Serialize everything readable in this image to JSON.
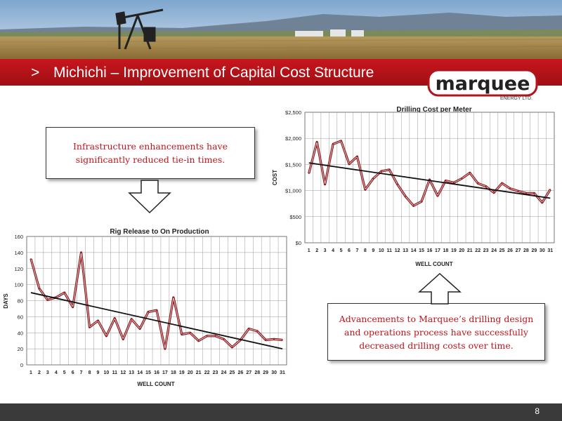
{
  "slide": {
    "title": "Michichi – Improvement of Capital Cost Structure",
    "title_marker": ">",
    "page_number": "8"
  },
  "logo": {
    "name": "marquee",
    "subtitle": "ENERGY LTD."
  },
  "callouts": {
    "infrastructure": "Infrastructure enhancements have significantly reduced tie-in times.",
    "drilling": "Advancements to Marquee’s drilling design and operations process have successfully decreased drilling costs over time."
  },
  "colors": {
    "accent": "#c8161d",
    "series": "#b2141b",
    "trend": "#111111",
    "footer": "#3a3a3a"
  },
  "chart_data": [
    {
      "type": "line",
      "title": "Drilling Cost per Meter",
      "xlabel": "WELL COUNT",
      "ylabel": "COST",
      "x": [
        1,
        2,
        3,
        4,
        5,
        6,
        7,
        8,
        9,
        10,
        11,
        12,
        13,
        14,
        15,
        16,
        17,
        18,
        19,
        20,
        21,
        22,
        23,
        24,
        25,
        26,
        27,
        28,
        29,
        30,
        31
      ],
      "ylim": [
        0,
        2500
      ],
      "yticks": [
        "$0",
        "$500",
        "$1,000",
        "$1,500",
        "$2,000",
        "$2,500"
      ],
      "grid": true,
      "series": [
        {
          "values": [
            1330,
            1930,
            1120,
            1890,
            1950,
            1510,
            1650,
            1020,
            1230,
            1370,
            1400,
            1120,
            890,
            710,
            790,
            1210,
            900,
            1190,
            1150,
            1230,
            1340,
            1140,
            1080,
            960,
            1140,
            1040,
            990,
            950,
            950,
            770,
            1020
          ]
        }
      ],
      "trendline": [
        1530,
        855
      ]
    },
    {
      "type": "line",
      "title": "Rig Release to On Production",
      "xlabel": "WELL COUNT",
      "ylabel": "DAYS",
      "x": [
        1,
        2,
        3,
        4,
        5,
        6,
        7,
        8,
        9,
        10,
        11,
        12,
        13,
        14,
        15,
        16,
        17,
        18,
        19,
        20,
        21,
        22,
        23,
        24,
        25,
        26,
        27,
        28,
        29,
        30,
        31
      ],
      "ylim": [
        0,
        160
      ],
      "yticks": [
        "0",
        "20",
        "40",
        "60",
        "80",
        "100",
        "120",
        "140",
        "160"
      ],
      "grid": true,
      "series": [
        {
          "values": [
            132,
            95,
            81,
            84,
            90,
            72,
            140,
            47,
            55,
            36,
            58,
            32,
            57,
            45,
            66,
            68,
            20,
            84,
            38,
            40,
            30,
            36,
            36,
            32,
            22,
            31,
            45,
            42,
            31,
            32,
            31
          ]
        }
      ],
      "trendline": [
        90,
        20
      ]
    }
  ]
}
